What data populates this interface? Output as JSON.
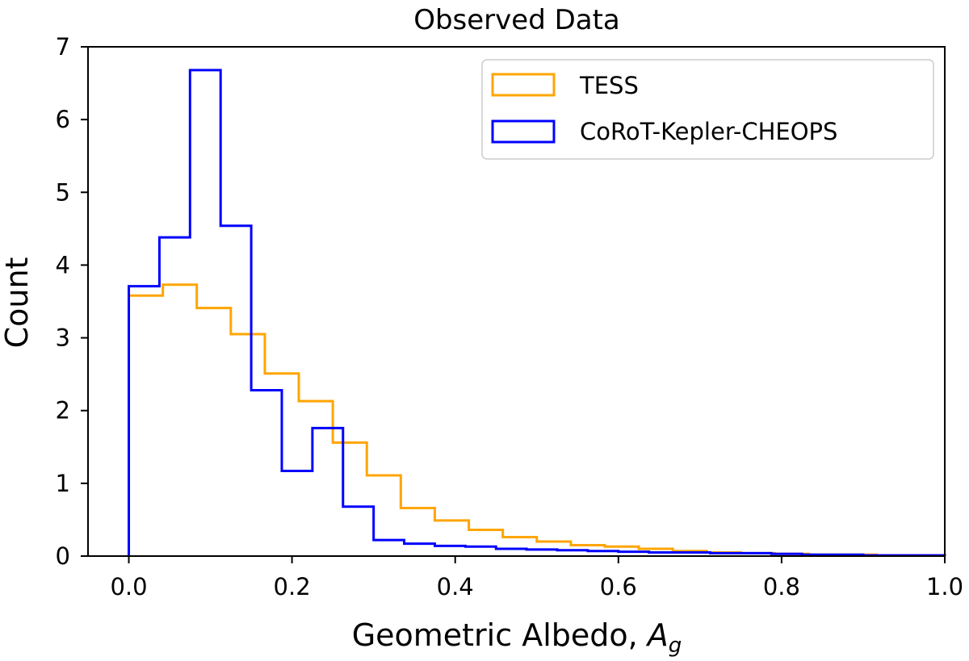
{
  "chart_data": {
    "type": "histogram",
    "title": "Observed Data",
    "xlabel_main": "Geometric Albedo, ",
    "xlabel_symbol": "A",
    "xlabel_subscript": "g",
    "ylabel": "Count",
    "xlim": [
      -0.05,
      1.0
    ],
    "ylim": [
      0,
      7
    ],
    "x_ticks": [
      "0.0",
      "0.2",
      "0.4",
      "0.6",
      "0.8",
      "1.0"
    ],
    "y_ticks": [
      "0",
      "1",
      "2",
      "3",
      "4",
      "5",
      "6",
      "7"
    ],
    "legend_position": "top-right",
    "series": [
      {
        "name": "TESS",
        "color": "#FFA500",
        "bin_edges": [
          0,
          0.0417,
          0.0833,
          0.125,
          0.1667,
          0.2083,
          0.25,
          0.2917,
          0.3333,
          0.375,
          0.4167,
          0.4583,
          0.5,
          0.5417,
          0.5833,
          0.625,
          0.6667,
          0.7083,
          0.75,
          0.7917,
          0.8333,
          0.875,
          0.9167,
          0.9583,
          1.0
        ],
        "values": [
          3.58,
          3.73,
          3.41,
          3.05,
          2.51,
          2.13,
          1.56,
          1.11,
          0.66,
          0.49,
          0.36,
          0.26,
          0.2,
          0.15,
          0.13,
          0.1,
          0.07,
          0.05,
          0.04,
          0.03,
          0.02,
          0.02,
          0.01,
          0.01
        ]
      },
      {
        "name": "CoRoT-Kepler-CHEOPS",
        "color": "#0000FF",
        "bin_edges": [
          0,
          0.0375,
          0.075,
          0.1125,
          0.15,
          0.1875,
          0.225,
          0.2625,
          0.3,
          0.3375,
          0.375,
          0.4125,
          0.45,
          0.4875,
          0.525,
          0.5625,
          0.6,
          0.6375,
          0.675,
          0.7125,
          0.75,
          0.7875,
          0.825,
          0.8625,
          0.9,
          0.9375,
          0.975,
          1.0
        ],
        "values": [
          3.71,
          4.38,
          6.68,
          4.54,
          2.28,
          1.17,
          1.76,
          0.68,
          0.22,
          0.17,
          0.14,
          0.13,
          0.1,
          0.09,
          0.08,
          0.07,
          0.06,
          0.05,
          0.05,
          0.04,
          0.04,
          0.03,
          0.02,
          0.02,
          0.01,
          0.01,
          0.01
        ]
      }
    ]
  }
}
